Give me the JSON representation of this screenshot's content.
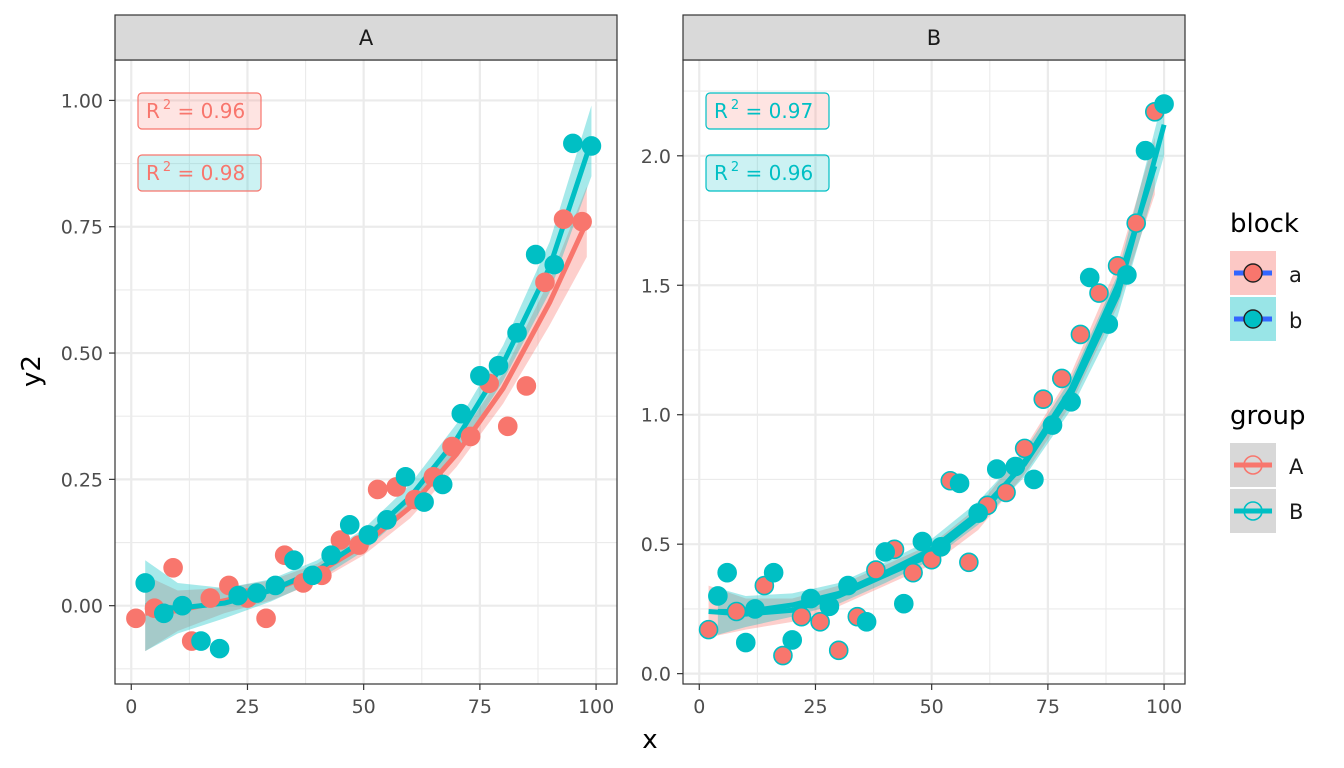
{
  "colors": {
    "red": "#F8766D",
    "teal": "#00BFC4",
    "grey_fill": "#BEBEBE",
    "blue": "#3366FF",
    "strip_bg": "#D9D9D9",
    "grid": "#EBEBEB",
    "border": "#333333"
  },
  "chart_data": {
    "type": "scatter",
    "xlabel": "x",
    "ylabel": "y2",
    "xlim": [
      -3.5,
      104.5
    ],
    "x_ticks": [
      0,
      25,
      50,
      75,
      100
    ],
    "x_tick_labels": [
      "0",
      "25",
      "50",
      "75",
      "100"
    ],
    "legend": {
      "position": "right",
      "block": {
        "title": "block",
        "entries": [
          "a",
          "b"
        ]
      },
      "group": {
        "title": "group",
        "entries": [
          "A",
          "B"
        ]
      }
    },
    "panels": [
      {
        "strip": "A",
        "ylim": [
          -0.155,
          1.08
        ],
        "y_ticks": [
          0,
          0.25,
          0.5,
          0.75,
          1.0
        ],
        "y_tick_labels": [
          "0.00",
          "0.25",
          "0.50",
          "0.75",
          "1.00"
        ],
        "labels": [
          {
            "prefix": "R",
            "sup": "2",
            "suffix": " = 0.96",
            "text_color": "red",
            "fill_color": "red"
          },
          {
            "prefix": "R",
            "sup": "2",
            "suffix": " = 0.98",
            "text_color": "red",
            "fill_color": "teal"
          }
        ],
        "series": [
          {
            "name": "a",
            "outline": "red",
            "fill": "red",
            "x": [
              1,
              9,
              13,
              21,
              25,
              29,
              33,
              41,
              53,
              57,
              61,
              65,
              73,
              77,
              81,
              85,
              89,
              93,
              97,
              5,
              17,
              37,
              45,
              49,
              69
            ],
            "y": [
              -0.025,
              0.075,
              -0.07,
              0.04,
              0.015,
              -0.025,
              0.1,
              0.06,
              0.23,
              0.235,
              0.21,
              0.255,
              0.335,
              0.44,
              0.355,
              0.435,
              0.64,
              0.765,
              0.76,
              -0.005,
              0.015,
              0.045,
              0.13,
              0.12,
              0.315
            ],
            "fit_x": [
              3,
              10,
              20,
              30,
              40,
              50,
              60,
              70,
              80,
              90,
              98
            ],
            "fit_y": [
              -0.015,
              -0.01,
              0.01,
              0.03,
              0.065,
              0.12,
              0.195,
              0.3,
              0.43,
              0.6,
              0.76
            ],
            "band_half_width": [
              0.075,
              0.04,
              0.025,
              0.02,
              0.018,
              0.02,
              0.022,
              0.025,
              0.03,
              0.045,
              0.07
            ]
          },
          {
            "name": "b",
            "outline": "teal",
            "fill": "teal",
            "x": [
              3,
              7,
              11,
              15,
              19,
              23,
              27,
              31,
              35,
              39,
              43,
              47,
              51,
              55,
              59,
              63,
              67,
              71,
              75,
              79,
              83,
              87,
              91,
              95,
              99
            ],
            "y": [
              0.045,
              -0.015,
              0.0,
              -0.07,
              -0.085,
              0.02,
              0.025,
              0.04,
              0.09,
              0.06,
              0.1,
              0.16,
              0.14,
              0.17,
              0.255,
              0.205,
              0.24,
              0.38,
              0.455,
              0.475,
              0.54,
              0.695,
              0.675,
              0.915,
              0.91
            ],
            "fit_x": [
              3,
              10,
              20,
              30,
              40,
              50,
              60,
              70,
              80,
              90,
              99
            ],
            "fit_y": [
              0.0,
              -0.005,
              0.005,
              0.03,
              0.07,
              0.13,
              0.215,
              0.33,
              0.48,
              0.67,
              0.92
            ],
            "band_half_width": [
              0.09,
              0.05,
              0.03,
              0.022,
              0.02,
              0.022,
              0.025,
              0.03,
              0.035,
              0.05,
              0.07
            ]
          }
        ]
      },
      {
        "strip": "B",
        "ylim": [
          -0.04,
          2.37
        ],
        "y_ticks": [
          0,
          0.5,
          1.0,
          1.5,
          2.0
        ],
        "y_tick_labels": [
          "0.0",
          "0.5",
          "1.0",
          "1.5",
          "2.0"
        ],
        "labels": [
          {
            "prefix": "R",
            "sup": "2",
            "suffix": " = 0.97",
            "text_color": "teal",
            "fill_color": "red"
          },
          {
            "prefix": "R",
            "sup": "2",
            "suffix": " = 0.96",
            "text_color": "teal",
            "fill_color": "teal"
          }
        ],
        "series": [
          {
            "name": "a",
            "outline": "teal",
            "fill": "red",
            "x": [
              2,
              8,
              14,
              18,
              22,
              26,
              30,
              34,
              38,
              42,
              46,
              50,
              54,
              58,
              62,
              66,
              70,
              74,
              78,
              82,
              86,
              90,
              94,
              98
            ],
            "y": [
              0.17,
              0.24,
              0.34,
              0.07,
              0.22,
              0.2,
              0.09,
              0.22,
              0.4,
              0.48,
              0.39,
              0.44,
              0.745,
              0.43,
              0.65,
              0.7,
              0.87,
              1.06,
              1.14,
              1.31,
              1.47,
              1.575,
              1.74,
              2.17
            ],
            "fit_x": [
              2,
              10,
              20,
              30,
              40,
              50,
              60,
              70,
              80,
              90,
              98
            ],
            "fit_y": [
              0.24,
              0.23,
              0.245,
              0.3,
              0.38,
              0.46,
              0.6,
              0.82,
              1.1,
              1.5,
              1.96
            ],
            "band_half_width": [
              0.1,
              0.06,
              0.045,
              0.04,
              0.04,
              0.04,
              0.045,
              0.05,
              0.06,
              0.08,
              0.11
            ]
          },
          {
            "name": "b",
            "outline": "teal",
            "fill": "teal",
            "x": [
              4,
              6,
              10,
              12,
              16,
              20,
              24,
              28,
              32,
              36,
              40,
              44,
              48,
              52,
              56,
              60,
              64,
              68,
              72,
              76,
              80,
              84,
              88,
              92,
              96,
              100
            ],
            "y": [
              0.3,
              0.39,
              0.12,
              0.25,
              0.39,
              0.13,
              0.29,
              0.26,
              0.34,
              0.2,
              0.47,
              0.27,
              0.51,
              0.49,
              0.735,
              0.62,
              0.79,
              0.8,
              0.75,
              0.96,
              1.05,
              1.53,
              1.35,
              1.54,
              2.02,
              2.2
            ],
            "fit_x": [
              4,
              10,
              20,
              30,
              40,
              50,
              60,
              70,
              80,
              90,
              100
            ],
            "fit_y": [
              0.24,
              0.24,
              0.265,
              0.31,
              0.39,
              0.48,
              0.62,
              0.81,
              1.08,
              1.46,
              2.12
            ],
            "band_half_width": [
              0.09,
              0.06,
              0.045,
              0.04,
              0.04,
              0.04,
              0.045,
              0.05,
              0.06,
              0.08,
              0.12
            ]
          }
        ]
      }
    ]
  }
}
